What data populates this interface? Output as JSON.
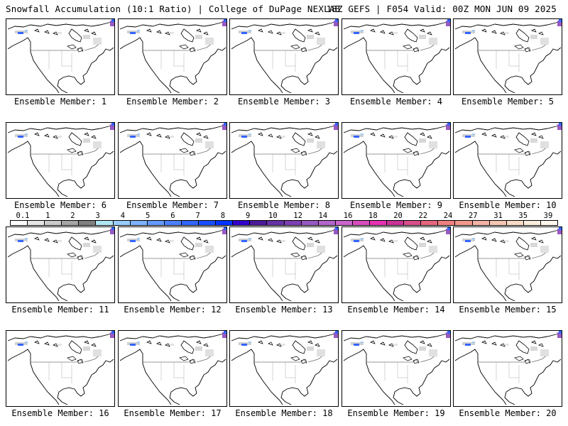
{
  "header": {
    "left": "Snowfall Accumulation (10:1 Ratio) | College of DuPage NEXLAB",
    "right": "18Z GEFS | F054 Valid: 00Z MON JUN 09 2025"
  },
  "panels": [
    {
      "label": "Ensemble Member: 1"
    },
    {
      "label": "Ensemble Member: 2"
    },
    {
      "label": "Ensemble Member: 3"
    },
    {
      "label": "Ensemble Member: 4"
    },
    {
      "label": "Ensemble Member: 5"
    },
    {
      "label": "Ensemble Member: 6"
    },
    {
      "label": "Ensemble Member: 7"
    },
    {
      "label": "Ensemble Member: 8"
    },
    {
      "label": "Ensemble Member: 9"
    },
    {
      "label": "Ensemble Member: 10"
    },
    {
      "label": "Ensemble Member: 11"
    },
    {
      "label": "Ensemble Member: 12"
    },
    {
      "label": "Ensemble Member: 13"
    },
    {
      "label": "Ensemble Member: 14"
    },
    {
      "label": "Ensemble Member: 15"
    },
    {
      "label": "Ensemble Member: 16"
    },
    {
      "label": "Ensemble Member: 17"
    },
    {
      "label": "Ensemble Member: 18"
    },
    {
      "label": "Ensemble Member: 19"
    },
    {
      "label": "Ensemble Member: 20"
    }
  ],
  "colorbar": {
    "tick_labels": [
      "0.1",
      "1",
      "2",
      "3",
      "4",
      "5",
      "6",
      "7",
      "8",
      "9",
      "10",
      "12",
      "14",
      "16",
      "18",
      "20",
      "22",
      "24",
      "27",
      "31",
      "35",
      "39"
    ],
    "colors": [
      "#ffffff",
      "#e6e6e6",
      "#cccccc",
      "#a6a6a6",
      "#808080",
      "#b3e6f5",
      "#99ccff",
      "#7fb2ff",
      "#6699ff",
      "#4d80ff",
      "#3366ff",
      "#1a4dff",
      "#0033ff",
      "#3300cc",
      "#4d1a99",
      "#6633a6",
      "#7f40b3",
      "#9959c2",
      "#b366cc",
      "#cc66cc",
      "#d94dbf",
      "#e633b3",
      "#cc3399",
      "#d94d8c",
      "#e66680",
      "#ef8080",
      "#f2998c",
      "#f5b3a6",
      "#f7c7b3",
      "#f9dbc7",
      "#fbeedd",
      "#fff8ee"
    ]
  }
}
